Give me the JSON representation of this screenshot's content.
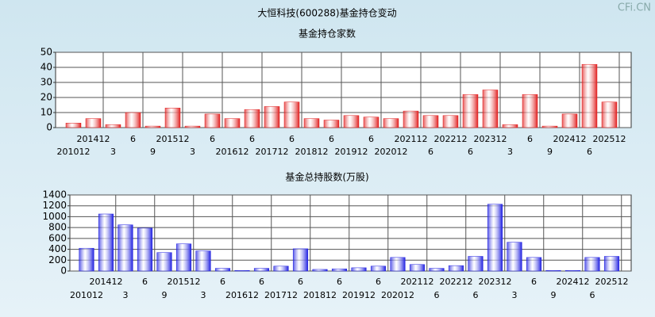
{
  "title": "大恒科技(600288)基金持仓变动",
  "watermark": "CFi.CN",
  "chart_data": [
    {
      "type": "bar",
      "title": "基金持仓家数",
      "categories": [
        "201012",
        "201412",
        "3",
        "6",
        "9",
        "201512",
        "3",
        "6",
        "201612",
        "6",
        "201712",
        "6",
        "201812",
        "6",
        "201912",
        "6",
        "202012",
        "202112",
        "6",
        "202212",
        "6",
        "202312",
        "3",
        "6",
        "9",
        "202412",
        "6",
        "202512"
      ],
      "values": [
        3,
        6,
        2,
        10,
        1,
        13,
        1,
        9,
        6,
        12,
        14,
        17,
        6,
        5,
        8,
        7,
        6,
        11,
        8,
        8,
        22,
        25,
        2,
        22,
        1,
        9,
        42,
        17
      ],
      "color": "#e02020",
      "ylim": [
        0,
        50
      ],
      "yticks": [
        0,
        10,
        20,
        30,
        40,
        50
      ],
      "grid": true
    },
    {
      "type": "bar",
      "title": "基金总持股数(万股)",
      "categories": [
        "201012",
        "201412",
        "3",
        "6",
        "9",
        "201512",
        "3",
        "6",
        "201612",
        "6",
        "201712",
        "6",
        "201812",
        "6",
        "201912",
        "6",
        "202012",
        "202112",
        "6",
        "202212",
        "6",
        "202312",
        "3",
        "6",
        "9",
        "202412",
        "6",
        "202512"
      ],
      "values": [
        420,
        1050,
        850,
        790,
        340,
        500,
        370,
        50,
        10,
        50,
        90,
        410,
        30,
        40,
        60,
        90,
        250,
        120,
        50,
        100,
        270,
        1230,
        530,
        250,
        10,
        10,
        250,
        270
      ],
      "color": "#2020e0",
      "ylim": [
        0,
        1400
      ],
      "yticks": [
        0,
        200,
        400,
        600,
        800,
        1000,
        1200,
        1400
      ],
      "grid": true
    }
  ]
}
